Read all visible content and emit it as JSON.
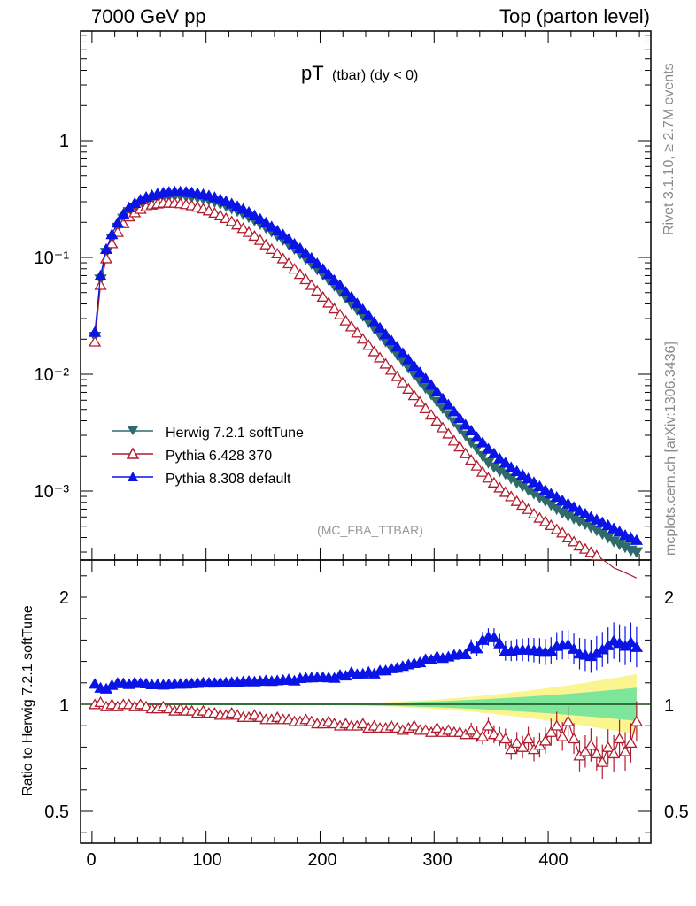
{
  "header": {
    "left": "7000 GeV pp",
    "right": "Top (parton level)"
  },
  "plot": {
    "title_main": "pT",
    "title_sub": "(tbar) (dy < 0)",
    "analysis_tag": "(MC_FBA_TTBAR)",
    "side_version": "Rivet 3.1.10, ≥ 2.7M events",
    "side_source": "mcplots.cern.ch [arXiv:1306.3436]",
    "ratio_ylabel": "Ratio to Herwig 7.2.1 softTune"
  },
  "chart_data": [
    {
      "type": "scatter",
      "yscale": "log",
      "ylim": [
        0.00025,
        10
      ],
      "xlim": [
        -10,
        490
      ],
      "ytick_labels": [
        "1",
        "10⁻¹",
        "10⁻²",
        "10⁻³"
      ],
      "legend_position": "lower-left",
      "series": [
        {
          "name": "Herwig 7.2.1 softTune",
          "color": "#2f6b6b",
          "marker": "triangle-down-filled"
        },
        {
          "name": "Pythia 6.428 370",
          "color": "#b01c2e",
          "marker": "triangle-up-open"
        },
        {
          "name": "Pythia 8.308 default",
          "color": "#0a14e6",
          "marker": "triangle-up-filled"
        }
      ],
      "x": [
        2.5,
        7.5,
        12.5,
        17.5,
        22.5,
        27.5,
        32.5,
        37.5,
        42.5,
        47.5,
        52.5,
        57.5,
        62.5,
        67.5,
        72.5,
        77.5,
        82.5,
        87.5,
        92.5,
        97.5,
        102.5,
        107.5,
        112.5,
        117.5,
        122.5,
        127.5,
        132.5,
        137.5,
        142.5,
        147.5,
        152.5,
        157.5,
        162.5,
        167.5,
        172.5,
        177.5,
        182.5,
        187.5,
        192.5,
        197.5,
        202.5,
        207.5,
        212.5,
        217.5,
        222.5,
        227.5,
        232.5,
        237.5,
        242.5,
        247.5,
        252.5,
        257.5,
        262.5,
        267.5,
        272.5,
        277.5,
        282.5,
        287.5,
        292.5,
        297.5,
        302.5,
        307.5,
        312.5,
        317.5,
        322.5,
        327.5,
        332.5,
        337.5,
        342.5,
        347.5,
        352.5,
        357.5,
        362.5,
        367.5,
        372.5,
        377.5,
        382.5,
        387.5,
        392.5,
        397.5,
        402.5,
        407.5,
        412.5,
        417.5,
        422.5,
        427.5,
        432.5,
        437.5,
        442.5,
        447.5,
        452.5,
        457.5,
        462.5,
        467.5,
        472.5,
        477.5
      ],
      "herwig": [
        0.021,
        0.065,
        0.11,
        0.145,
        0.18,
        0.215,
        0.245,
        0.265,
        0.285,
        0.3,
        0.313,
        0.322,
        0.329,
        0.333,
        0.335,
        0.335,
        0.333,
        0.329,
        0.323,
        0.316,
        0.308,
        0.298,
        0.287,
        0.275,
        0.262,
        0.249,
        0.235,
        0.221,
        0.207,
        0.193,
        0.179,
        0.166,
        0.153,
        0.141,
        0.129,
        0.118,
        0.107,
        0.097,
        0.088,
        0.079,
        0.071,
        0.064,
        0.057,
        0.051,
        0.045,
        0.04,
        0.0355,
        0.0315,
        0.0278,
        0.0245,
        0.0216,
        0.019,
        0.0167,
        0.0147,
        0.0129,
        0.0113,
        0.0099,
        0.0087,
        0.0076,
        0.0067,
        0.0058,
        0.0051,
        0.0045,
        0.0039,
        0.0034,
        0.003,
        0.0026,
        0.0023,
        0.002,
        0.00175,
        0.0016,
        0.00148,
        0.0014,
        0.00128,
        0.00118,
        0.0011,
        0.00102,
        0.00095,
        0.00088,
        0.00082,
        0.00076,
        0.0007,
        0.00065,
        0.00061,
        0.00058,
        0.00055,
        0.00052,
        0.00049,
        0.00046,
        0.00043,
        0.0004,
        0.00037,
        0.00035,
        0.00033,
        0.00031,
        0.0003
      ],
      "pythia6": [
        0.019,
        0.058,
        0.098,
        0.132,
        0.165,
        0.196,
        0.224,
        0.243,
        0.26,
        0.273,
        0.283,
        0.289,
        0.293,
        0.294,
        0.293,
        0.29,
        0.285,
        0.279,
        0.271,
        0.262,
        0.252,
        0.241,
        0.229,
        0.217,
        0.204,
        0.191,
        0.178,
        0.165,
        0.153,
        0.141,
        0.129,
        0.118,
        0.108,
        0.098,
        0.089,
        0.08,
        0.072,
        0.065,
        0.058,
        0.052,
        0.046,
        0.041,
        0.0365,
        0.0325,
        0.0288,
        0.0256,
        0.0227,
        0.0201,
        0.0178,
        0.0157,
        0.0139,
        0.0123,
        0.0109,
        0.0096,
        0.0085,
        0.0075,
        0.0066,
        0.0058,
        0.0051,
        0.0045,
        0.004,
        0.0035,
        0.0031,
        0.0027,
        0.0024,
        0.0021,
        0.00185,
        0.00165,
        0.00146,
        0.0013,
        0.00118,
        0.00107,
        0.00098,
        0.0009,
        0.00082,
        0.00076,
        0.0007,
        0.00064,
        0.00059,
        0.00055,
        0.00051,
        0.00047,
        0.00044,
        0.0004,
        0.00037,
        0.00034,
        0.00032,
        0.0003,
        0.00028,
        0.00026,
        0.00024,
        0.00022,
        0.00021,
        0.0002,
        0.00019,
        0.00018
      ],
      "pythia8": [
        0.023,
        0.07,
        0.118,
        0.158,
        0.198,
        0.236,
        0.268,
        0.292,
        0.313,
        0.329,
        0.342,
        0.352,
        0.359,
        0.364,
        0.367,
        0.367,
        0.365,
        0.361,
        0.355,
        0.348,
        0.339,
        0.328,
        0.316,
        0.303,
        0.289,
        0.275,
        0.26,
        0.245,
        0.229,
        0.214,
        0.199,
        0.184,
        0.17,
        0.157,
        0.144,
        0.131,
        0.12,
        0.109,
        0.099,
        0.089,
        0.08,
        0.072,
        0.064,
        0.058,
        0.051,
        0.046,
        0.0405,
        0.036,
        0.032,
        0.028,
        0.025,
        0.022,
        0.0195,
        0.0172,
        0.0152,
        0.0134,
        0.0118,
        0.0104,
        0.0092,
        0.0081,
        0.0071,
        0.0062,
        0.0055,
        0.0048,
        0.0042,
        0.0037,
        0.0033,
        0.0029,
        0.0026,
        0.0023,
        0.0021,
        0.0019,
        0.00175,
        0.0016,
        0.00148,
        0.00138,
        0.00128,
        0.00119,
        0.0011,
        0.00102,
        0.00095,
        0.00089,
        0.00083,
        0.00078,
        0.00073,
        0.00068,
        0.00064,
        0.0006,
        0.00057,
        0.00054,
        0.00051,
        0.00048,
        0.00045,
        0.00042,
        0.0004,
        0.00038
      ]
    },
    {
      "type": "scatter",
      "ylabel": "Ratio to Herwig 7.2.1 softTune",
      "ylim": [
        0.35,
        2.3
      ],
      "yticks": [
        0.5,
        1,
        2
      ],
      "ytick_labels": [
        "0.5",
        "1",
        "2"
      ],
      "xticks": [
        0,
        100,
        200,
        300,
        400
      ],
      "xlim": [
        -10,
        490
      ],
      "x": [
        2.5,
        7.5,
        12.5,
        17.5,
        22.5,
        27.5,
        32.5,
        37.5,
        42.5,
        47.5,
        52.5,
        57.5,
        62.5,
        67.5,
        72.5,
        77.5,
        82.5,
        87.5,
        92.5,
        97.5,
        102.5,
        107.5,
        112.5,
        117.5,
        122.5,
        127.5,
        132.5,
        137.5,
        142.5,
        147.5,
        152.5,
        157.5,
        162.5,
        167.5,
        172.5,
        177.5,
        182.5,
        187.5,
        192.5,
        197.5,
        202.5,
        207.5,
        212.5,
        217.5,
        222.5,
        227.5,
        232.5,
        237.5,
        242.5,
        247.5,
        252.5,
        257.5,
        262.5,
        267.5,
        272.5,
        277.5,
        282.5,
        287.5,
        292.5,
        297.5,
        302.5,
        307.5,
        312.5,
        317.5,
        322.5,
        327.5,
        332.5,
        337.5,
        342.5,
        347.5,
        352.5,
        357.5,
        362.5,
        367.5,
        372.5,
        377.5,
        382.5,
        387.5,
        392.5,
        397.5,
        402.5,
        407.5,
        412.5,
        417.5,
        422.5,
        427.5,
        432.5,
        437.5,
        442.5,
        447.5,
        452.5,
        457.5,
        462.5,
        467.5,
        472.5,
        477.5
      ],
      "pythia6_ratio": [
        1.0,
        1.01,
        0.99,
        1.0,
        0.99,
        1.0,
        1.0,
        0.99,
        1.0,
        0.99,
        0.98,
        0.98,
        0.99,
        0.98,
        0.97,
        0.98,
        0.97,
        0.97,
        0.96,
        0.97,
        0.96,
        0.96,
        0.95,
        0.95,
        0.96,
        0.95,
        0.94,
        0.94,
        0.95,
        0.94,
        0.93,
        0.93,
        0.94,
        0.93,
        0.93,
        0.92,
        0.92,
        0.93,
        0.92,
        0.91,
        0.91,
        0.92,
        0.91,
        0.9,
        0.91,
        0.9,
        0.9,
        0.91,
        0.89,
        0.9,
        0.89,
        0.89,
        0.9,
        0.89,
        0.88,
        0.89,
        0.9,
        0.88,
        0.88,
        0.87,
        0.89,
        0.87,
        0.88,
        0.87,
        0.87,
        0.86,
        0.88,
        0.86,
        0.85,
        0.9,
        0.86,
        0.85,
        0.84,
        0.79,
        0.82,
        0.8,
        0.84,
        0.79,
        0.81,
        0.83,
        0.87,
        0.9,
        0.85,
        0.92,
        0.84,
        0.76,
        0.78,
        0.81,
        0.77,
        0.73,
        0.8,
        0.77,
        0.84,
        0.78,
        0.82,
        0.92
      ]
    }
  ]
}
